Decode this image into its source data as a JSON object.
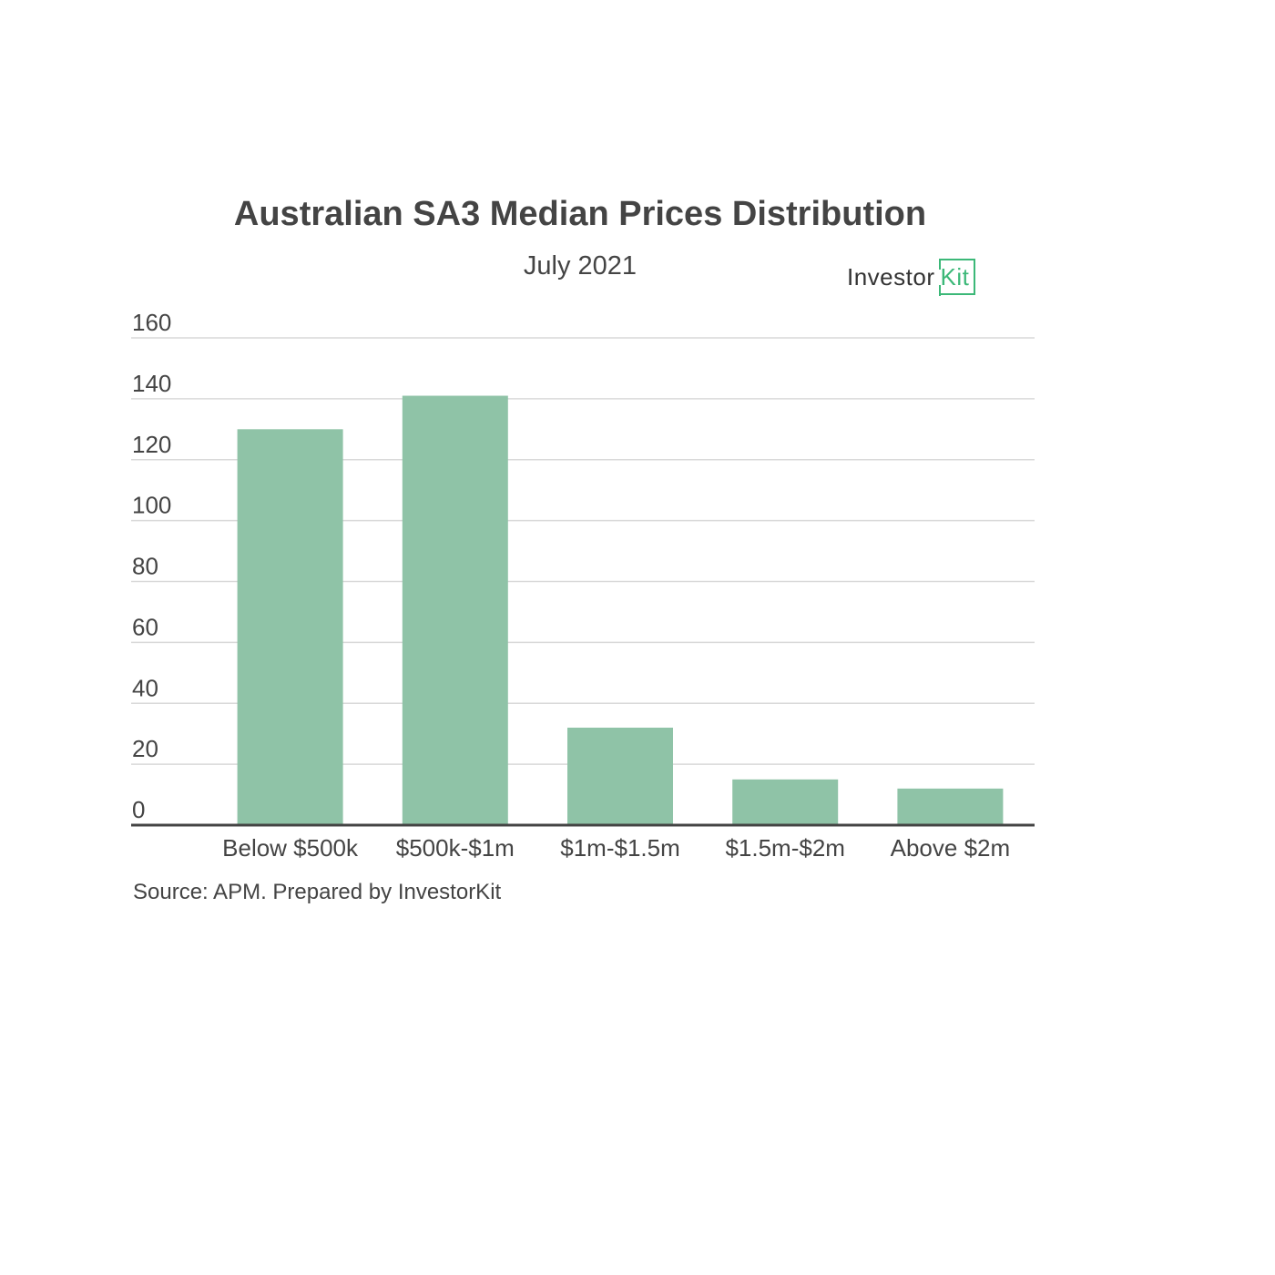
{
  "header": {
    "title": "Australian SA3 Median Prices Distribution",
    "subtitle": "July 2021"
  },
  "logo": {
    "word": "Investor",
    "badge": "Kit"
  },
  "footer": {
    "source": "Source: APM. Prepared by InvestorKit"
  },
  "chart_data": {
    "type": "bar",
    "title": "Australian SA3 Median Prices Distribution",
    "subtitle": "July 2021",
    "categories": [
      "Below $500k",
      "$500k-$1m",
      "$1m-$1.5m",
      "$1.5m-$2m",
      "Above $2m"
    ],
    "values": [
      130,
      141,
      32,
      15,
      12
    ],
    "ylim": [
      0,
      160
    ],
    "yticks": [
      "0",
      "20",
      "40",
      "60",
      "80",
      "100",
      "120",
      "140",
      "160"
    ],
    "xlabel": "",
    "ylabel": "",
    "grid": true,
    "legend": "none",
    "bar_color": "#8fc3a7",
    "axis_color": "#444444",
    "grid_color": "#d9d9d9"
  }
}
